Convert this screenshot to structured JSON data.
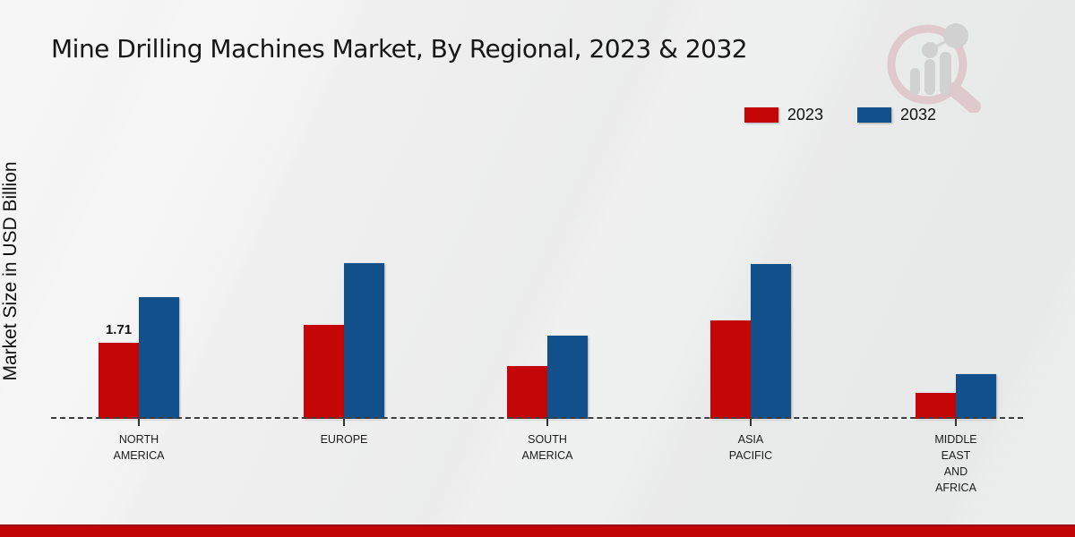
{
  "title": "Mine Drilling Machines Market, By Regional, 2023 & 2032",
  "y_axis_label": "Market Size in USD Billion",
  "legend": {
    "position": "top-right",
    "items": [
      {
        "label": "2023",
        "color": "#c40606"
      },
      {
        "label": "2032",
        "color": "#11508a"
      }
    ]
  },
  "chart_data": {
    "type": "bar",
    "title": "Mine Drilling Machines Market, By Regional, 2023 & 2032",
    "ylabel": "Market Size in USD Billion",
    "xlabel": "",
    "categories": [
      "NORTH AMERICA",
      "EUROPE",
      "SOUTH AMERICA",
      "ASIA PACIFIC",
      "MIDDLE EAST AND AFRICA"
    ],
    "category_label_lines": [
      "NORTH\nAMERICA",
      "EUROPE",
      "SOUTH\nAMERICA",
      "ASIA\nPACIFIC",
      "MIDDLE\nEAST\nAND\nAFRICA"
    ],
    "series": [
      {
        "name": "2023",
        "color": "#c40606",
        "values": [
          1.71,
          2.11,
          1.19,
          2.21,
          0.58
        ]
      },
      {
        "name": "2032",
        "color": "#11508a",
        "values": [
          2.74,
          3.5,
          1.87,
          3.48,
          1.01
        ]
      }
    ],
    "data_labels": [
      {
        "series": "2023",
        "category": "NORTH AMERICA",
        "text": "1.71"
      }
    ],
    "ylim": [
      0,
      4
    ],
    "grid": false,
    "baseline_style": "dashed",
    "legend_position": "top-right"
  },
  "watermark": {
    "name": "market-research-future-logo"
  },
  "footer": {
    "bar_color": "#c10505"
  }
}
